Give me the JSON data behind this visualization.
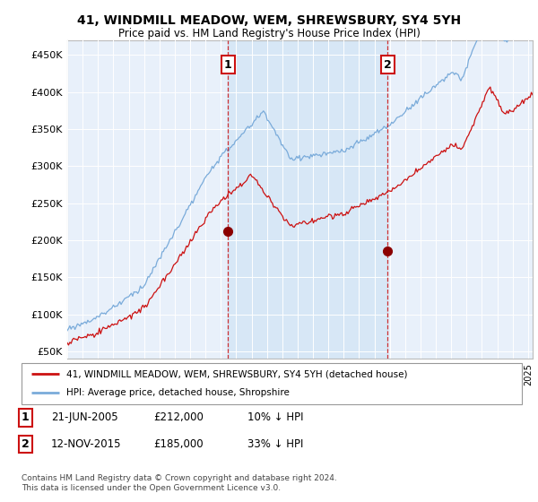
{
  "title": "41, WINDMILL MEADOW, WEM, SHREWSBURY, SY4 5YH",
  "subtitle": "Price paid vs. HM Land Registry's House Price Index (HPI)",
  "ylabel_ticks": [
    "£50K",
    "£100K",
    "£150K",
    "£200K",
    "£250K",
    "£300K",
    "£350K",
    "£400K",
    "£450K"
  ],
  "ytick_values": [
    50000,
    100000,
    150000,
    200000,
    250000,
    300000,
    350000,
    400000,
    450000
  ],
  "ylim": [
    40000,
    470000
  ],
  "xlim_start": 1995.0,
  "xlim_end": 2025.3,
  "hpi_color": "#7aabda",
  "hpi_fill_color": "#d0e4f5",
  "price_color": "#cc1111",
  "marker1_date": 2005.47,
  "marker1_price": 212000,
  "marker1_label": "1",
  "marker2_date": 2015.87,
  "marker2_price": 185000,
  "marker2_label": "2",
  "legend_line1": "41, WINDMILL MEADOW, WEM, SHREWSBURY, SY4 5YH (detached house)",
  "legend_line2": "HPI: Average price, detached house, Shropshire",
  "note1_label": "1",
  "note1_date": "21-JUN-2005",
  "note1_price": "£212,000",
  "note1_pct": "10% ↓ HPI",
  "note2_label": "2",
  "note2_date": "12-NOV-2015",
  "note2_price": "£185,000",
  "note2_pct": "33% ↓ HPI",
  "footer": "Contains HM Land Registry data © Crown copyright and database right 2024.\nThis data is licensed under the Open Government Licence v3.0.",
  "plot_bg_color": "#e8f0fa"
}
